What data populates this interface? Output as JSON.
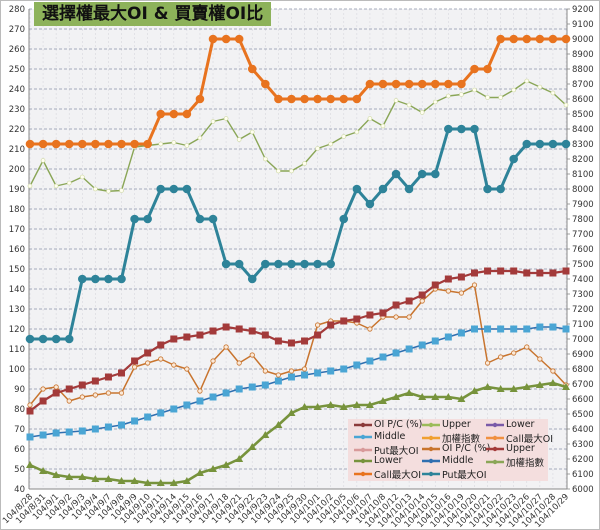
{
  "title": "選擇權最大OI & 買賣權OI比",
  "chart_data": {
    "type": "line",
    "title": "選擇權最大OI & 買賣權OI比",
    "xlabel": "",
    "ylabel_left": "",
    "ylabel_right": "",
    "ylim_left": [
      40,
      280
    ],
    "ylim_right": [
      6000,
      9200
    ],
    "left_ticks": [
      40,
      50,
      60,
      70,
      80,
      90,
      100,
      110,
      120,
      130,
      140,
      150,
      160,
      170,
      180,
      190,
      200,
      210,
      220,
      230,
      240,
      250,
      260,
      270,
      280
    ],
    "right_ticks": [
      6000,
      6100,
      6200,
      6300,
      6400,
      6500,
      6600,
      6700,
      6800,
      6900,
      7000,
      7100,
      7200,
      7300,
      7400,
      7500,
      7600,
      7700,
      7800,
      7900,
      8000,
      8100,
      8200,
      8300,
      8400,
      8500,
      8600,
      8700,
      8800,
      8900,
      9000,
      9100,
      9200
    ],
    "grid": true,
    "legend_position": "lower-right inside",
    "categories": [
      "104/8/28",
      "104/8/31",
      "104/9/1",
      "104/9/2",
      "104/9/3",
      "104/9/4",
      "104/9/7",
      "104/9/8",
      "104/9/9",
      "104/9/10",
      "104/9/11",
      "104/9/14",
      "104/9/15",
      "104/9/16",
      "104/9/17",
      "104/9/18",
      "104/9/21",
      "104/9/22",
      "104/9/23",
      "104/9/24",
      "104/9/25",
      "104/9/30",
      "104/10/1",
      "104/10/2",
      "104/10/5",
      "104/10/6",
      "104/10/7",
      "104/10/8",
      "104/10/12",
      "104/10/13",
      "104/10/14",
      "104/10/15",
      "104/10/16",
      "104/10/19",
      "104/10/20",
      "104/10/21",
      "104/10/22",
      "104/10/23",
      "104/10/26",
      "104/10/27",
      "104/10/28",
      "104/10/29"
    ],
    "series": [
      {
        "name": "OI P/C (%)",
        "axis": "left",
        "color": "#c8742e",
        "marker": "circle-open",
        "values": [
          82,
          90,
          91,
          84,
          86,
          87,
          88,
          88,
          101,
          103,
          105,
          102,
          100,
          89,
          104,
          111,
          103,
          107,
          99,
          97,
          99,
          100,
          122,
          124,
          124,
          123,
          120,
          126,
          126,
          126,
          134,
          140,
          139,
          138,
          142,
          103,
          106,
          108,
          111,
          105,
          99,
          92
        ]
      },
      {
        "name": "Upper",
        "axis": "left",
        "color": "#a33a3a",
        "marker": "square",
        "values": [
          79,
          84,
          88,
          90,
          92,
          94,
          96,
          98,
          104,
          108,
          112,
          115,
          116,
          117,
          119,
          121,
          120,
          119,
          117,
          114,
          113,
          114,
          117,
          122,
          124,
          125,
          127,
          128,
          132,
          134,
          137,
          142,
          145,
          146,
          148,
          149,
          149,
          149,
          148,
          148,
          148,
          149
        ]
      },
      {
        "name": "Middle",
        "axis": "left",
        "color": "#2f6fb0",
        "marker": "square",
        "marker_color": "#4aa5d4",
        "values": [
          66,
          67,
          68,
          68.5,
          69,
          70,
          71,
          72,
          74,
          76,
          78,
          80,
          82,
          84,
          86,
          88,
          90,
          91,
          92,
          94,
          96,
          97,
          98,
          99,
          100,
          102,
          104,
          106,
          108,
          110,
          112,
          114,
          116,
          118,
          120,
          120,
          120,
          120,
          120,
          121,
          121,
          120
        ]
      },
      {
        "name": "Lower",
        "axis": "left",
        "color": "#77933c",
        "marker": "triangle",
        "values": [
          52,
          49,
          47,
          46,
          46,
          45,
          45,
          44,
          44,
          43,
          43,
          43,
          44,
          48,
          50,
          52,
          55,
          61,
          67,
          72,
          78,
          81,
          81,
          82,
          81,
          82,
          82,
          84,
          86,
          88,
          86,
          86,
          86,
          85,
          89,
          91,
          90,
          90,
          91,
          92,
          93,
          91
        ]
      },
      {
        "name": "加權指數",
        "axis": "right",
        "color": "#8aa657",
        "marker": "diamond-open",
        "values": [
          8020,
          8190,
          8020,
          8040,
          8080,
          8000,
          7985,
          7990,
          8280,
          8290,
          8300,
          8310,
          8290,
          8340,
          8450,
          8470,
          8330,
          8380,
          8200,
          8120,
          8120,
          8170,
          8270,
          8300,
          8350,
          8380,
          8470,
          8420,
          8590,
          8560,
          8510,
          8580,
          8620,
          8630,
          8660,
          8610,
          8610,
          8660,
          8720,
          8680,
          8640,
          8560
        ]
      },
      {
        "name": "Call最大OI",
        "axis": "right",
        "color": "#e8731f",
        "marker": "circle",
        "values": [
          8300,
          8300,
          8300,
          8300,
          8300,
          8300,
          8300,
          8300,
          8300,
          8300,
          8500,
          8500,
          8500,
          8600,
          9000,
          9000,
          9000,
          8800,
          8700,
          8600,
          8600,
          8600,
          8600,
          8600,
          8600,
          8600,
          8700,
          8700,
          8700,
          8700,
          8700,
          8700,
          8700,
          8700,
          8800,
          8800,
          9000,
          9000,
          9000,
          9000,
          9000,
          9000
        ]
      },
      {
        "name": "Put最大OI",
        "axis": "right",
        "color": "#2e8399",
        "marker": "circle",
        "values": [
          7000,
          7000,
          7000,
          7000,
          7400,
          7400,
          7400,
          7400,
          7800,
          7800,
          8000,
          8000,
          8000,
          7800,
          7800,
          7500,
          7500,
          7400,
          7500,
          7500,
          7500,
          7500,
          7500,
          7500,
          7800,
          8000,
          7900,
          8000,
          8100,
          8000,
          8100,
          8100,
          8400,
          8400,
          8400,
          8000,
          8000,
          8200,
          8300,
          8300,
          8300,
          8300
        ]
      }
    ]
  },
  "legend": [
    {
      "label": "OI P/C (%)",
      "color": "#8b3a3a",
      "style": "line"
    },
    {
      "label": "Upper",
      "color": "#9bbb59",
      "style": "line"
    },
    {
      "label": "Lower",
      "color": "#7a5aa8",
      "style": "line-diamond"
    },
    {
      "label": "Middle",
      "color": "#4aa5d4",
      "style": "line-square"
    },
    {
      "label": "加權指數",
      "color": "#f0a030",
      "style": "line-star"
    },
    {
      "label": "Call最大OI",
      "color": "#f09040",
      "style": "line"
    },
    {
      "label": "Put最大OI",
      "color": "#d89a9a",
      "style": "line"
    },
    {
      "label": "OI P/C (%)",
      "color": "#c8742e",
      "style": "line-circle-open"
    },
    {
      "label": "Upper",
      "color": "#a33a3a",
      "style": "line-square"
    },
    {
      "label": "Lower",
      "color": "#77933c",
      "style": "line-triangle"
    },
    {
      "label": "Middle",
      "color": "#2f6fb0",
      "style": "line-plus"
    },
    {
      "label": "加權指數",
      "color": "#8aa657",
      "style": "line-diamond-open"
    },
    {
      "label": "Call最大OI",
      "color": "#e8731f",
      "style": "line-circle"
    },
    {
      "label": "Put最大OI",
      "color": "#2e8399",
      "style": "line-circle"
    }
  ]
}
